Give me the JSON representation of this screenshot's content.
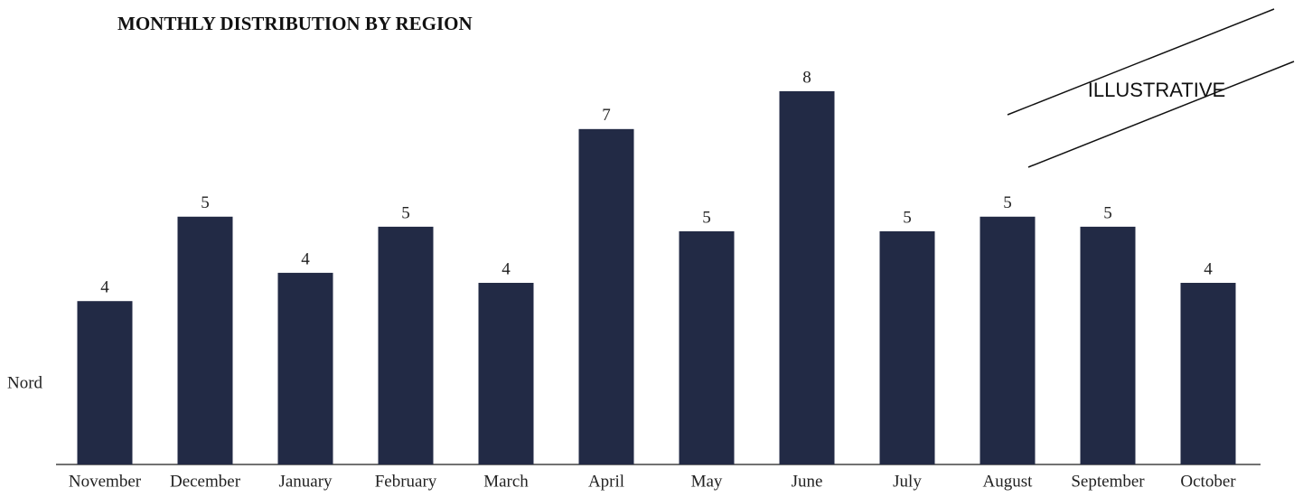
{
  "chart_data": {
    "type": "bar",
    "title": "MONTHLY DISTRIBUTION BY REGION",
    "annotation": "ILLUSTRATIVE",
    "categories": [
      "November",
      "December",
      "January",
      "February",
      "March",
      "April",
      "May",
      "June",
      "July",
      "August",
      "September",
      "October"
    ],
    "series": [
      {
        "name": "Nord",
        "color": "#222a45",
        "values": [
          3.58,
          5.43,
          4.2,
          5.21,
          3.98,
          7.35,
          5.11,
          8.18,
          5.11,
          5.43,
          5.21,
          3.98
        ],
        "value_labels": [
          "4",
          "5",
          "4",
          "5",
          "4",
          "7",
          "5",
          "8",
          "5",
          "5",
          "5",
          "4"
        ]
      }
    ]
  }
}
